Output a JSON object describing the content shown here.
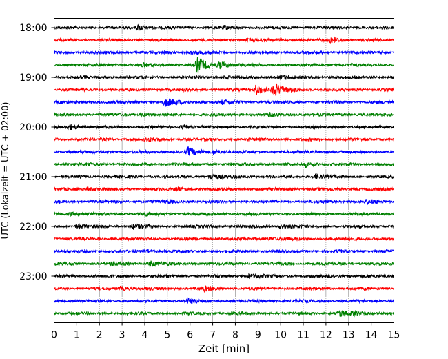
{
  "chart_data": {
    "type": "line",
    "title": "",
    "xlabel": "Zeit  [min]",
    "ylabel": "UTC (Lokalzeit = UTC + 02:00)",
    "xlim": [
      0,
      15
    ],
    "x_ticks": [
      "0",
      "1",
      "2",
      "3",
      "4",
      "5",
      "6",
      "7",
      "8",
      "9",
      "10",
      "11",
      "12",
      "13",
      "14",
      "15"
    ],
    "y_ticks": [
      "18:00",
      "19:00",
      "20:00",
      "21:00",
      "22:00",
      "23:00"
    ],
    "grid": {
      "vertical": true,
      "style": "dotted"
    },
    "trace_interval_minutes": 15,
    "traces_start": "18:00",
    "trace_colors": [
      "#000000",
      "#ff0000",
      "#0000ff",
      "#008000"
    ],
    "series": [
      {
        "start": "18:00",
        "color": "#000000",
        "events": [
          {
            "t": 3.7,
            "amp": 0.7
          },
          {
            "t": 7.5,
            "amp": 0.35
          }
        ]
      },
      {
        "start": "18:15",
        "color": "#ff0000",
        "events": [
          {
            "t": 12.2,
            "amp": 0.8
          },
          {
            "t": 8.5,
            "amp": 0.3
          }
        ]
      },
      {
        "start": "18:30",
        "color": "#0000ff",
        "events": [
          {
            "t": 6.0,
            "amp": 0.3
          }
        ]
      },
      {
        "start": "18:45",
        "color": "#008000",
        "events": [
          {
            "t": 6.3,
            "amp": 2.2
          },
          {
            "t": 7.3,
            "amp": 0.9
          },
          {
            "t": 3.9,
            "amp": 0.4
          }
        ]
      },
      {
        "start": "19:00",
        "color": "#000000",
        "events": [
          {
            "t": 10.0,
            "amp": 0.5
          },
          {
            "t": 7.5,
            "amp": 0.3
          }
        ]
      },
      {
        "start": "19:15",
        "color": "#ff0000",
        "events": [
          {
            "t": 9.7,
            "amp": 1.8
          },
          {
            "t": 8.9,
            "amp": 1.3
          }
        ]
      },
      {
        "start": "19:30",
        "color": "#0000ff",
        "events": [
          {
            "t": 4.9,
            "amp": 1.1
          },
          {
            "t": 7.4,
            "amp": 0.4
          }
        ]
      },
      {
        "start": "19:45",
        "color": "#008000",
        "events": [
          {
            "t": 3.8,
            "amp": 0.35
          },
          {
            "t": 9.5,
            "amp": 0.3
          }
        ]
      },
      {
        "start": "20:00",
        "color": "#000000",
        "events": [
          {
            "t": 0.6,
            "amp": 0.8
          },
          {
            "t": 5.6,
            "amp": 0.4
          }
        ]
      },
      {
        "start": "20:15",
        "color": "#ff0000",
        "events": [
          {
            "t": 4.0,
            "amp": 0.4
          }
        ]
      },
      {
        "start": "20:30",
        "color": "#0000ff",
        "events": [
          {
            "t": 5.9,
            "amp": 1.1
          },
          {
            "t": 7.0,
            "amp": 0.5
          }
        ]
      },
      {
        "start": "20:45",
        "color": "#008000",
        "events": [
          {
            "t": 11.1,
            "amp": 0.6
          },
          {
            "t": 1.5,
            "amp": 0.3
          }
        ]
      },
      {
        "start": "21:00",
        "color": "#000000",
        "events": [
          {
            "t": 6.9,
            "amp": 0.8
          },
          {
            "t": 11.5,
            "amp": 0.6
          }
        ]
      },
      {
        "start": "21:15",
        "color": "#ff0000",
        "events": [
          {
            "t": 1.5,
            "amp": 0.4
          },
          {
            "t": 5.4,
            "amp": 0.3
          }
        ]
      },
      {
        "start": "21:30",
        "color": "#0000ff",
        "events": [
          {
            "t": 5.0,
            "amp": 0.4
          },
          {
            "t": 13.8,
            "amp": 0.5
          }
        ]
      },
      {
        "start": "21:45",
        "color": "#008000",
        "events": [
          {
            "t": 3.9,
            "amp": 0.4
          },
          {
            "t": 0.7,
            "amp": 0.4
          }
        ]
      },
      {
        "start": "22:00",
        "color": "#000000",
        "events": [
          {
            "t": 3.5,
            "amp": 0.6
          },
          {
            "t": 1.0,
            "amp": 0.5
          },
          {
            "t": 10.0,
            "amp": 0.45
          }
        ]
      },
      {
        "start": "22:15",
        "color": "#ff0000",
        "events": [
          {
            "t": 9.5,
            "amp": 0.3
          }
        ]
      },
      {
        "start": "22:30",
        "color": "#0000ff",
        "events": [
          {
            "t": 4.0,
            "amp": 0.3
          }
        ]
      },
      {
        "start": "22:45",
        "color": "#008000",
        "events": [
          {
            "t": 4.2,
            "amp": 0.8
          },
          {
            "t": 2.4,
            "amp": 0.5
          }
        ]
      },
      {
        "start": "23:00",
        "color": "#000000",
        "events": [
          {
            "t": 8.6,
            "amp": 0.5
          }
        ]
      },
      {
        "start": "23:15",
        "color": "#ff0000",
        "events": [
          {
            "t": 2.9,
            "amp": 0.5
          },
          {
            "t": 6.6,
            "amp": 0.5
          }
        ]
      },
      {
        "start": "23:30",
        "color": "#0000ff",
        "events": [
          {
            "t": 5.9,
            "amp": 0.6
          }
        ]
      },
      {
        "start": "23:45",
        "color": "#008000",
        "events": [
          {
            "t": 12.6,
            "amp": 0.8
          },
          {
            "t": 13.2,
            "amp": 0.5
          }
        ]
      }
    ]
  }
}
